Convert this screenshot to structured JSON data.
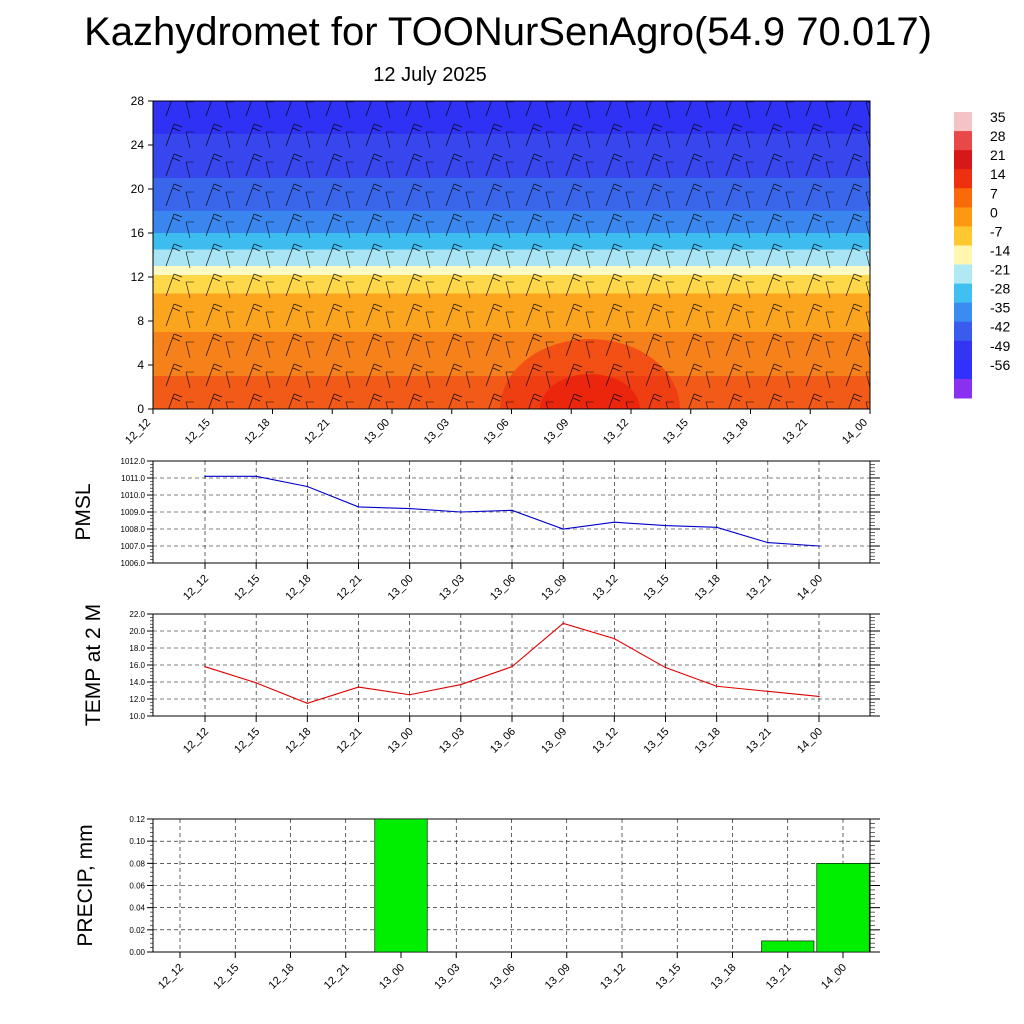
{
  "title": "Kazhydromet for TOONurSenAgro(54.9 70.017)",
  "subtitle": "12 July 2025",
  "colorbar": {
    "labels": [
      "35",
      "28",
      "21",
      "14",
      "7",
      "0",
      "-7",
      "-14",
      "-21",
      "-28",
      "-35",
      "-42",
      "-49",
      "-56"
    ],
    "colors": [
      "#f4c4c4",
      "#e84848",
      "#d81818",
      "#ee3010",
      "#fa6a0a",
      "#fd9910",
      "#ffc830",
      "#fff6b0",
      "#b0e8f4",
      "#40c0f0",
      "#3a8cf0",
      "#3a5cee",
      "#3434f4",
      "#3030ff",
      "#8a30f0"
    ]
  },
  "chart_data": [
    {
      "type": "heatmap",
      "description_of_axes": "time vs level",
      "categories": [
        "12_12",
        "12_15",
        "12_18",
        "12_21",
        "13_00",
        "13_03",
        "13_06",
        "13_09",
        "13_12",
        "13_15",
        "13_18",
        "13_21",
        "14_00"
      ],
      "y_ticks": [
        "0",
        "4",
        "8",
        "12",
        "16",
        "20",
        "24",
        "28"
      ],
      "ylim": [
        0,
        28
      ],
      "color_bands": [
        {
          "from": 0,
          "to": 3,
          "color": "#f25a18"
        },
        {
          "from": 3,
          "to": 7,
          "color": "#f6801a"
        },
        {
          "from": 7,
          "to": 10.5,
          "color": "#fba41e"
        },
        {
          "from": 10.5,
          "to": 12.2,
          "color": "#ffd84a"
        },
        {
          "from": 12.2,
          "to": 13,
          "color": "#fff9c4"
        },
        {
          "from": 13,
          "to": 14.5,
          "color": "#a8e4f4"
        },
        {
          "from": 14.5,
          "to": 16,
          "color": "#3cbcef"
        },
        {
          "from": 16,
          "to": 18,
          "color": "#3a86ef"
        },
        {
          "from": 18,
          "to": 21,
          "color": "#3a66ec"
        },
        {
          "from": 21,
          "to": 25,
          "color": "#3846ee"
        },
        {
          "from": 25,
          "to": 28,
          "color": "#2f32f4"
        }
      ]
    },
    {
      "type": "line",
      "ylabel": "PMSL",
      "categories": [
        "12_12",
        "12_15",
        "12_18",
        "12_21",
        "13_00",
        "13_03",
        "13_06",
        "13_09",
        "13_12",
        "13_15",
        "13_18",
        "13_21",
        "14_00"
      ],
      "values": [
        1011.1,
        1011.1,
        1010.5,
        1009.3,
        1009.2,
        1009.0,
        1009.1,
        1008.0,
        1008.4,
        1008.2,
        1008.1,
        1007.2,
        1007.0
      ],
      "y_ticks": [
        "1006.0",
        "1007.0",
        "1008.0",
        "1009.0",
        "1010.0",
        "1011.0",
        "1012.0"
      ],
      "ylim": [
        1006,
        1012
      ],
      "color": "#0000cc"
    },
    {
      "type": "line",
      "ylabel": "TEMP at 2 M",
      "categories": [
        "12_12",
        "12_15",
        "12_18",
        "12_21",
        "13_00",
        "13_03",
        "13_06",
        "13_09",
        "13_12",
        "13_15",
        "13_18",
        "13_21",
        "14_00"
      ],
      "values": [
        15.8,
        13.9,
        11.5,
        13.4,
        12.5,
        13.7,
        15.8,
        20.9,
        19.1,
        15.7,
        13.5,
        12.9,
        12.3
      ],
      "y_ticks": [
        "10.0",
        "12.0",
        "14.0",
        "16.0",
        "18.0",
        "20.0",
        "22.0"
      ],
      "ylim": [
        10,
        22
      ],
      "color": "#dd0000"
    },
    {
      "type": "bar",
      "ylabel": "PRECIP, mm",
      "categories": [
        "12_12",
        "12_15",
        "12_18",
        "12_21",
        "13_00",
        "13_03",
        "13_06",
        "13_09",
        "13_12",
        "13_15",
        "13_18",
        "13_21",
        "14_00"
      ],
      "values": [
        0,
        0,
        0,
        0,
        0.12,
        0,
        0,
        0,
        0,
        0,
        0,
        0.01,
        0.08
      ],
      "y_ticks": [
        "0.00",
        "0.02",
        "0.04",
        "0.06",
        "0.08",
        "0.10",
        "0.12"
      ],
      "ylim": [
        0,
        0.12
      ],
      "color": "#00ee00"
    }
  ]
}
